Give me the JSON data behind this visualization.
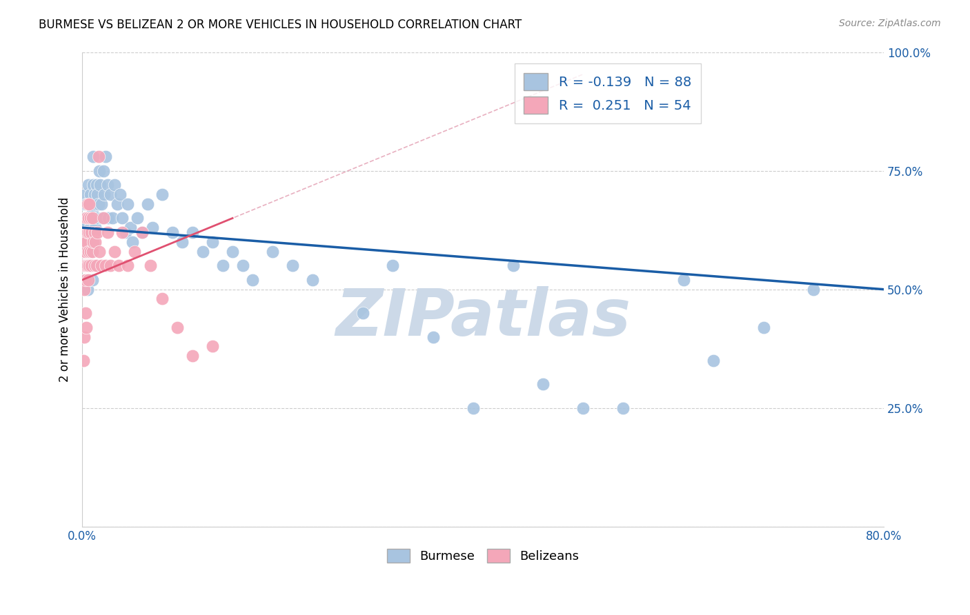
{
  "title": "BURMESE VS BELIZEAN 2 OR MORE VEHICLES IN HOUSEHOLD CORRELATION CHART",
  "source": "Source: ZipAtlas.com",
  "ylabel": "2 or more Vehicles in Household",
  "xmin": 0.0,
  "xmax": 0.8,
  "ymin": 0.0,
  "ymax": 1.0,
  "xticks": [
    0.0,
    0.1,
    0.2,
    0.3,
    0.4,
    0.5,
    0.6,
    0.7,
    0.8
  ],
  "yticks": [
    0.0,
    0.25,
    0.5,
    0.75,
    1.0
  ],
  "burmese_R": -0.139,
  "burmese_N": 88,
  "belizean_R": 0.251,
  "belizean_N": 54,
  "burmese_color": "#a8c4e0",
  "belizean_color": "#f4a7b9",
  "burmese_line_color": "#1a5da6",
  "belizean_line_color": "#e05070",
  "belizean_dash_color": "#e8b0c0",
  "watermark": "ZIPatlas",
  "watermark_color": "#ccd9e8",
  "burmese_x": [
    0.001,
    0.001,
    0.002,
    0.002,
    0.002,
    0.003,
    0.003,
    0.003,
    0.003,
    0.004,
    0.004,
    0.004,
    0.005,
    0.005,
    0.005,
    0.006,
    0.006,
    0.006,
    0.006,
    0.007,
    0.007,
    0.007,
    0.008,
    0.008,
    0.008,
    0.009,
    0.009,
    0.01,
    0.01,
    0.01,
    0.011,
    0.011,
    0.012,
    0.012,
    0.013,
    0.013,
    0.014,
    0.015,
    0.015,
    0.016,
    0.017,
    0.018,
    0.019,
    0.02,
    0.021,
    0.022,
    0.023,
    0.025,
    0.026,
    0.028,
    0.03,
    0.032,
    0.035,
    0.038,
    0.04,
    0.043,
    0.045,
    0.048,
    0.05,
    0.055,
    0.06,
    0.065,
    0.07,
    0.08,
    0.09,
    0.1,
    0.11,
    0.12,
    0.13,
    0.14,
    0.15,
    0.16,
    0.17,
    0.19,
    0.21,
    0.23,
    0.28,
    0.31,
    0.35,
    0.39,
    0.43,
    0.46,
    0.5,
    0.54,
    0.6,
    0.63,
    0.68,
    0.73
  ],
  "burmese_y": [
    0.58,
    0.62,
    0.55,
    0.64,
    0.68,
    0.52,
    0.6,
    0.65,
    0.7,
    0.55,
    0.63,
    0.68,
    0.5,
    0.58,
    0.65,
    0.52,
    0.6,
    0.65,
    0.72,
    0.55,
    0.62,
    0.68,
    0.58,
    0.63,
    0.7,
    0.55,
    0.65,
    0.52,
    0.6,
    0.67,
    0.72,
    0.78,
    0.65,
    0.7,
    0.63,
    0.68,
    0.72,
    0.65,
    0.7,
    0.68,
    0.75,
    0.72,
    0.68,
    0.65,
    0.75,
    0.7,
    0.78,
    0.72,
    0.65,
    0.7,
    0.65,
    0.72,
    0.68,
    0.7,
    0.65,
    0.62,
    0.68,
    0.63,
    0.6,
    0.65,
    0.62,
    0.68,
    0.63,
    0.7,
    0.62,
    0.6,
    0.62,
    0.58,
    0.6,
    0.55,
    0.58,
    0.55,
    0.52,
    0.58,
    0.55,
    0.52,
    0.45,
    0.55,
    0.4,
    0.25,
    0.55,
    0.3,
    0.25,
    0.25,
    0.52,
    0.35,
    0.42,
    0.5
  ],
  "belizean_x": [
    0.001,
    0.001,
    0.001,
    0.002,
    0.002,
    0.002,
    0.002,
    0.003,
    0.003,
    0.003,
    0.003,
    0.004,
    0.004,
    0.004,
    0.004,
    0.005,
    0.005,
    0.005,
    0.006,
    0.006,
    0.006,
    0.007,
    0.007,
    0.007,
    0.008,
    0.008,
    0.009,
    0.009,
    0.01,
    0.01,
    0.011,
    0.012,
    0.012,
    0.013,
    0.014,
    0.015,
    0.016,
    0.017,
    0.019,
    0.021,
    0.023,
    0.025,
    0.028,
    0.032,
    0.036,
    0.04,
    0.045,
    0.052,
    0.06,
    0.068,
    0.08,
    0.095,
    0.11,
    0.13
  ],
  "belizean_y": [
    0.58,
    0.62,
    0.35,
    0.5,
    0.55,
    0.6,
    0.4,
    0.52,
    0.58,
    0.62,
    0.45,
    0.55,
    0.6,
    0.65,
    0.42,
    0.55,
    0.62,
    0.68,
    0.52,
    0.58,
    0.65,
    0.55,
    0.62,
    0.68,
    0.58,
    0.65,
    0.55,
    0.62,
    0.58,
    0.65,
    0.6,
    0.62,
    0.55,
    0.6,
    0.55,
    0.62,
    0.78,
    0.58,
    0.55,
    0.65,
    0.55,
    0.62,
    0.55,
    0.58,
    0.55,
    0.62,
    0.55,
    0.58,
    0.62,
    0.55,
    0.48,
    0.42,
    0.36,
    0.38
  ],
  "background_color": "#ffffff",
  "grid_color": "#cccccc",
  "tick_label_color": "#1a5da6",
  "burmese_line_start_y": 0.63,
  "burmese_line_end_y": 0.5,
  "belizean_line_start_y": 0.52,
  "belizean_line_end_y": 0.65
}
